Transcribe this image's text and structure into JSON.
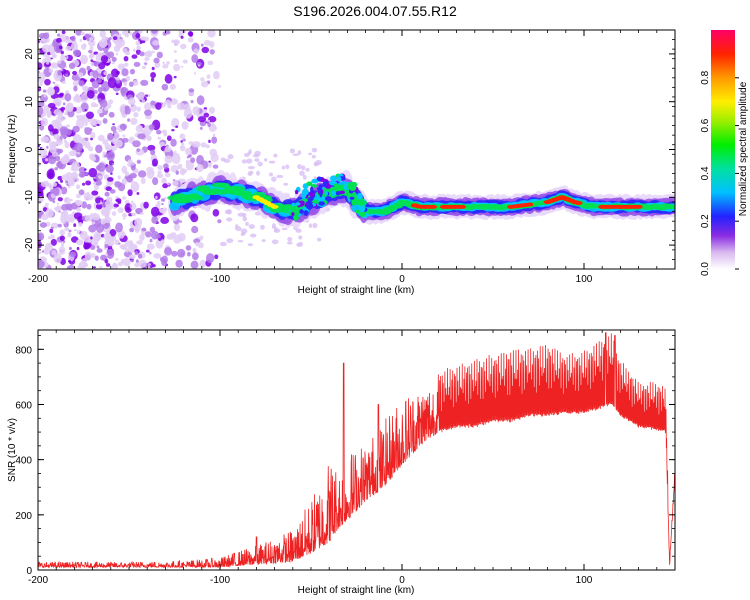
{
  "title": "S196.2026.004.07.55.R12",
  "chart_data": [
    {
      "type": "heatmap",
      "xlabel": "Height of straight line (km)",
      "ylabel": "Frequency (Hz)",
      "xlim": [
        -200,
        150
      ],
      "ylim": [
        -25,
        25
      ],
      "x_ticks": [
        -200,
        -100,
        0,
        100
      ],
      "y_ticks": [
        -20,
        -10,
        0,
        10,
        20
      ],
      "colorbar": {
        "label": "Normalized spectral amplitude",
        "range": [
          0,
          1
        ],
        "ticks": [
          "0.0",
          "0.2",
          "0.4",
          "0.6",
          "0.8"
        ]
      },
      "ridge": {
        "description_points": [
          [
            -125,
            -11
          ],
          [
            -110,
            -9
          ],
          [
            -100,
            -8
          ],
          [
            -90,
            -9
          ],
          [
            -80,
            -10
          ],
          [
            -70,
            -12
          ],
          [
            -60,
            -13
          ],
          [
            -50,
            -11
          ],
          [
            -40,
            -9
          ],
          [
            -30,
            -8
          ],
          [
            -25,
            -11
          ],
          [
            -20,
            -13
          ],
          [
            -10,
            -13
          ],
          [
            0,
            -11
          ],
          [
            10,
            -12
          ],
          [
            20,
            -12
          ],
          [
            40,
            -12
          ],
          [
            60,
            -12
          ],
          [
            80,
            -11
          ],
          [
            88,
            -10
          ],
          [
            95,
            -11
          ],
          [
            105,
            -12
          ],
          [
            120,
            -12
          ],
          [
            150,
            -12
          ]
        ]
      }
    },
    {
      "type": "line",
      "xlabel": "Height of straight line (km)",
      "ylabel": "SNR (10 * v/v)",
      "xlim": [
        -200,
        150
      ],
      "ylim": [
        0,
        870
      ],
      "x_ticks": [
        -200,
        -100,
        0,
        100
      ],
      "y_ticks": [
        0,
        200,
        400,
        600,
        800
      ],
      "color": "#ee2222",
      "envelope": {
        "x": [
          -200,
          -150,
          -120,
          -100,
          -90,
          -80,
          -70,
          -60,
          -50,
          -45,
          -40,
          -35,
          -30,
          -20,
          -10,
          0,
          10,
          20,
          30,
          40,
          50,
          60,
          70,
          80,
          90,
          100,
          110,
          115,
          120,
          130,
          140,
          145,
          147,
          150
        ],
        "low": [
          10,
          10,
          10,
          10,
          15,
          20,
          25,
          30,
          60,
          80,
          100,
          150,
          180,
          250,
          300,
          380,
          450,
          500,
          520,
          520,
          540,
          540,
          560,
          560,
          570,
          570,
          590,
          600,
          560,
          520,
          510,
          500,
          10,
          350
        ],
        "high": [
          30,
          30,
          35,
          45,
          70,
          90,
          120,
          150,
          260,
          330,
          420,
          380,
          430,
          470,
          540,
          640,
          680,
          720,
          740,
          760,
          780,
          800,
          800,
          820,
          780,
          790,
          840,
          860,
          760,
          680,
          680,
          660,
          30,
          380
        ]
      },
      "spikes": [
        [
          -32,
          750
        ],
        [
          -13,
          600
        ],
        [
          -80,
          120
        ],
        [
          112,
          860
        ],
        [
          117,
          850
        ]
      ]
    }
  ]
}
